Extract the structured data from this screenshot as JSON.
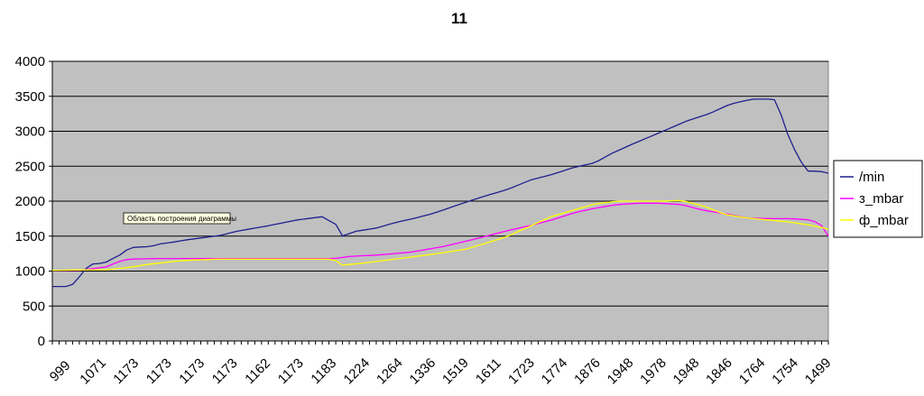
{
  "chart_data": {
    "type": "line",
    "title": "11",
    "xlabel": "",
    "ylabel": "",
    "ylim": [
      0,
      4000
    ],
    "y_ticks": [
      0,
      500,
      1000,
      1500,
      2000,
      2500,
      3000,
      3500,
      4000
    ],
    "grid": true,
    "plot_background": "#c0c0c0",
    "legend_position": "right",
    "x_tick_labels": [
      "999",
      "1071",
      "1173",
      "1173",
      "1173",
      "1173",
      "1162",
      "1173",
      "1183",
      "1224",
      "1264",
      "1336",
      "1519",
      "1611",
      "1723",
      "1774",
      "1876",
      "1948",
      "1978",
      "1948",
      "1846",
      "1764",
      "1754",
      "1499"
    ],
    "points_count": 116,
    "series": [
      {
        "name": "/min",
        "color": "#1f1f8f",
        "keypoints": [
          [
            0,
            780
          ],
          [
            3,
            780
          ],
          [
            4,
            820
          ],
          [
            6,
            1020
          ],
          [
            7,
            1100
          ],
          [
            9,
            1110
          ],
          [
            10,
            1130
          ],
          [
            11,
            1180
          ],
          [
            12,
            1190
          ],
          [
            13,
            1280
          ],
          [
            15,
            1340
          ],
          [
            18,
            1350
          ],
          [
            20,
            1390
          ],
          [
            22,
            1410
          ],
          [
            25,
            1450
          ],
          [
            28,
            1480
          ],
          [
            31,
            1510
          ],
          [
            34,
            1570
          ],
          [
            40,
            1650
          ],
          [
            45,
            1730
          ],
          [
            50,
            1780
          ],
          [
            51,
            1720
          ],
          [
            52,
            1720
          ],
          [
            53,
            1490
          ],
          [
            56,
            1570
          ],
          [
            60,
            1620
          ],
          [
            63,
            1690
          ],
          [
            67,
            1760
          ],
          [
            70,
            1820
          ],
          [
            73,
            1900
          ],
          [
            76,
            1980
          ],
          [
            80,
            2080
          ],
          [
            84,
            2170
          ],
          [
            88,
            2300
          ],
          [
            92,
            2380
          ],
          [
            96,
            2480
          ],
          [
            100,
            2550
          ],
          [
            103,
            2680
          ],
          [
            107,
            2820
          ],
          [
            111,
            2950
          ],
          [
            114,
            3050
          ],
          [
            117,
            3150
          ],
          [
            121,
            3250
          ],
          [
            125,
            3390
          ],
          [
            129,
            3460
          ],
          [
            133,
            3460
          ],
          [
            134,
            3300
          ],
          [
            136,
            2850
          ],
          [
            138,
            2560
          ],
          [
            139,
            2430
          ],
          [
            141,
            2430
          ],
          [
            142,
            2420
          ],
          [
            143,
            2400
          ]
        ]
      },
      {
        "name": "з_mbar",
        "color": "#ff00ff",
        "keypoints": [
          [
            0,
            1010
          ],
          [
            5,
            1010
          ],
          [
            10,
            1060
          ],
          [
            12,
            1130
          ],
          [
            14,
            1170
          ],
          [
            20,
            1180
          ],
          [
            30,
            1180
          ],
          [
            45,
            1180
          ],
          [
            52,
            1180
          ],
          [
            55,
            1210
          ],
          [
            60,
            1230
          ],
          [
            66,
            1270
          ],
          [
            72,
            1350
          ],
          [
            78,
            1460
          ],
          [
            84,
            1580
          ],
          [
            88,
            1650
          ],
          [
            92,
            1730
          ],
          [
            96,
            1830
          ],
          [
            100,
            1900
          ],
          [
            104,
            1950
          ],
          [
            108,
            1970
          ],
          [
            112,
            1970
          ],
          [
            116,
            1950
          ],
          [
            120,
            1870
          ],
          [
            124,
            1820
          ],
          [
            128,
            1760
          ],
          [
            132,
            1750
          ],
          [
            136,
            1750
          ],
          [
            140,
            1730
          ],
          [
            142,
            1640
          ],
          [
            143,
            1500
          ]
        ]
      },
      {
        "name": "ф_mbar",
        "color": "#ffff00",
        "keypoints": [
          [
            0,
            1010
          ],
          [
            10,
            1020
          ],
          [
            14,
            1050
          ],
          [
            18,
            1100
          ],
          [
            24,
            1150
          ],
          [
            30,
            1170
          ],
          [
            40,
            1170
          ],
          [
            48,
            1170
          ],
          [
            52,
            1170
          ],
          [
            53,
            1080
          ],
          [
            58,
            1120
          ],
          [
            64,
            1180
          ],
          [
            70,
            1240
          ],
          [
            76,
            1310
          ],
          [
            80,
            1400
          ],
          [
            84,
            1500
          ],
          [
            88,
            1640
          ],
          [
            92,
            1780
          ],
          [
            96,
            1870
          ],
          [
            100,
            1960
          ],
          [
            104,
            2000
          ],
          [
            108,
            2000
          ],
          [
            112,
            2000
          ],
          [
            116,
            2010
          ],
          [
            120,
            1930
          ],
          [
            124,
            1810
          ],
          [
            128,
            1760
          ],
          [
            132,
            1730
          ],
          [
            136,
            1700
          ],
          [
            140,
            1650
          ],
          [
            142,
            1620
          ],
          [
            143,
            1600
          ]
        ]
      }
    ],
    "annotation": "Область построения диаграммы"
  }
}
